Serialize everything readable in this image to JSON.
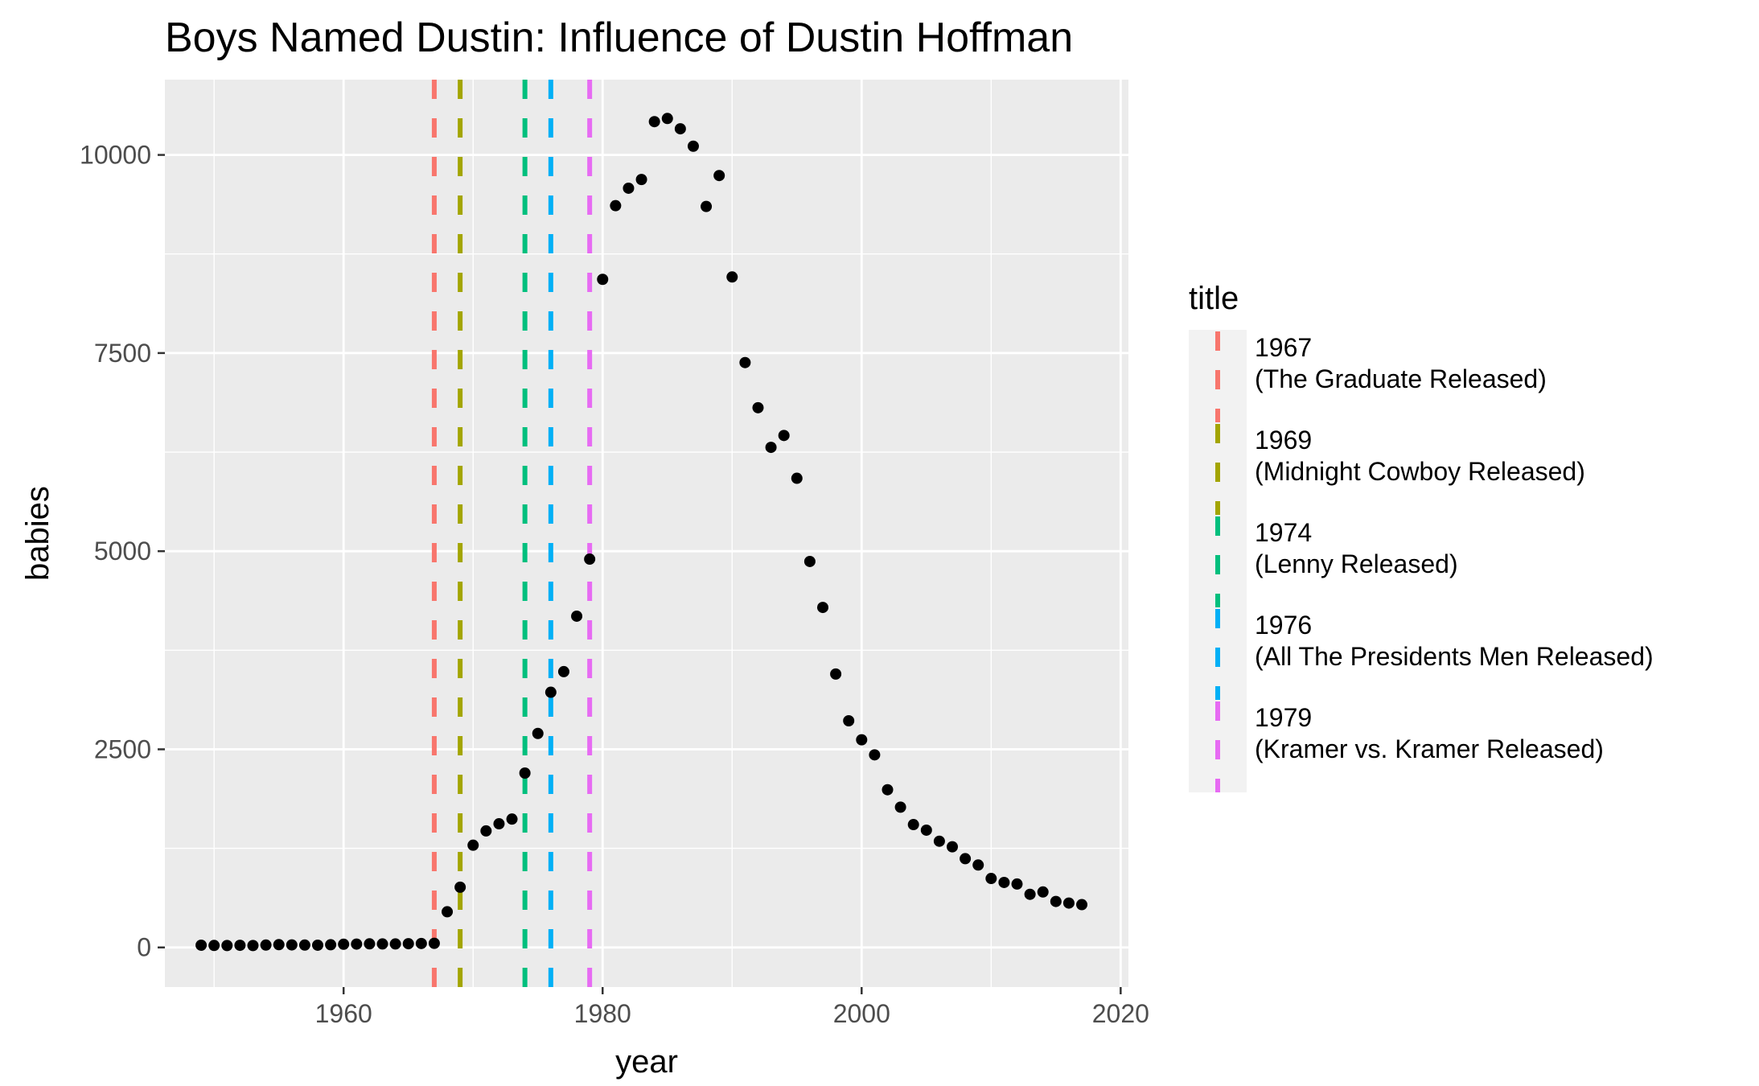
{
  "chart_data": {
    "type": "scatter",
    "title": "Boys Named Dustin: Influence of Dustin Hoffman",
    "xlabel": "year",
    "ylabel": "babies",
    "xlim": [
      1946.2,
      2020.6
    ],
    "ylim": [
      -500,
      10950
    ],
    "x_ticks": [
      1960,
      1980,
      2000,
      2020
    ],
    "y_ticks": [
      0,
      2500,
      5000,
      7500,
      10000
    ],
    "x_tick_labels": [
      "1960",
      "1980",
      "2000",
      "2020"
    ],
    "y_tick_labels": [
      "0",
      "2500",
      "5000",
      "7500",
      "10000"
    ],
    "grid": true,
    "legend_position": "right",
    "series": [
      {
        "x": [
          1949,
          1950,
          1951,
          1952,
          1953,
          1954,
          1955,
          1956,
          1957,
          1958,
          1959,
          1960,
          1961,
          1962,
          1963,
          1964,
          1965,
          1966,
          1967,
          1968,
          1969,
          1970,
          1971,
          1972,
          1973,
          1974,
          1975,
          1976,
          1977,
          1978,
          1979,
          1980,
          1981,
          1982,
          1983,
          1984,
          1985,
          1986,
          1987,
          1988,
          1989,
          1990,
          1991,
          1992,
          1993,
          1994,
          1995,
          1996,
          1997,
          1998,
          1999,
          2000,
          2001,
          2002,
          2003,
          2004,
          2005,
          2006,
          2007,
          2008,
          2009,
          2010,
          2011,
          2012,
          2013,
          2014,
          2015,
          2016,
          2017
        ],
        "y": [
          28,
          25,
          24,
          27,
          24,
          30,
          35,
          32,
          30,
          28,
          34,
          40,
          42,
          45,
          44,
          44,
          47,
          50,
          52,
          450,
          760,
          1290,
          1470,
          1560,
          1620,
          2200,
          2700,
          3220,
          3480,
          4180,
          4900,
          8430,
          9360,
          9580,
          9690,
          10420,
          10460,
          10330,
          10110,
          9350,
          9740,
          8460,
          7380,
          6810,
          6310,
          6460,
          5920,
          4870,
          4290,
          3450,
          2860,
          2620,
          2430,
          1990,
          1770,
          1550,
          1480,
          1340,
          1270,
          1120,
          1040,
          870,
          820,
          800,
          670,
          700,
          580,
          560,
          540
        ]
      }
    ],
    "reference_lines": [
      {
        "x": 1967,
        "label": "1967\n (The Graduate Released)",
        "color": "#F8766D"
      },
      {
        "x": 1969,
        "label": "1969\n (Midnight Cowboy Released)",
        "color": "#A3A500"
      },
      {
        "x": 1974,
        "label": "1974\n (Lenny Released)",
        "color": "#00BF7D"
      },
      {
        "x": 1976,
        "label": "1976\n (All The Presidents Men Released)",
        "color": "#00B0F6"
      },
      {
        "x": 1979,
        "label": "1979\n (Kramer vs. Kramer Released)",
        "color": "#E76BF3"
      }
    ],
    "legend_title": "title",
    "legend_entries": [
      {
        "line1": "1967",
        "line2": " (The Graduate Released)",
        "color": "#F8766D"
      },
      {
        "line1": "1969",
        "line2": " (Midnight Cowboy Released)",
        "color": "#A3A500"
      },
      {
        "line1": "1974",
        "line2": " (Lenny Released)",
        "color": "#00BF7D"
      },
      {
        "line1": "1976",
        "line2": " (All The Presidents Men Released)",
        "color": "#00B0F6"
      },
      {
        "line1": "1979",
        "line2": " (Kramer vs. Kramer Released)",
        "color": "#E76BF3"
      }
    ],
    "colors": {
      "panel_background": "#EBEBEB",
      "grid": "#FFFFFF",
      "points": "#000000",
      "legend_key_background": "#F2F2F2"
    }
  }
}
